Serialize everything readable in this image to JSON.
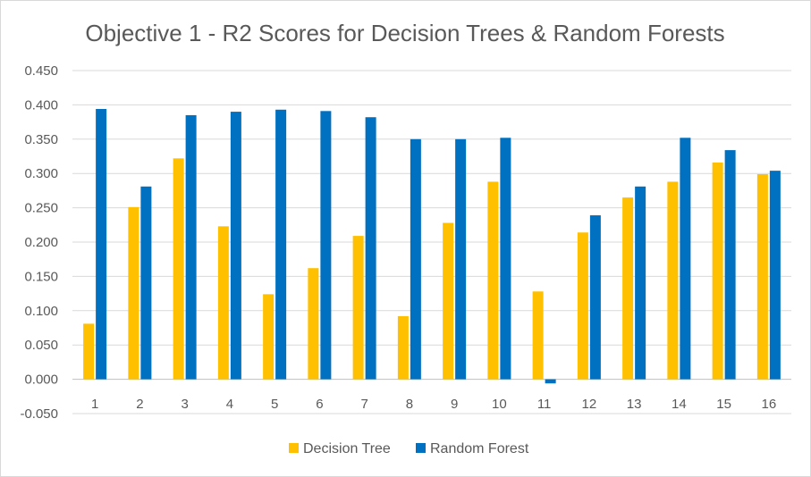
{
  "chart_data": {
    "type": "bar",
    "title": "Objective 1 - R2 Scores for Decision Trees & Random Forests",
    "xlabel": "",
    "ylabel": "",
    "categories": [
      "1",
      "2",
      "3",
      "4",
      "5",
      "6",
      "7",
      "8",
      "9",
      "10",
      "11",
      "12",
      "13",
      "14",
      "15",
      "16"
    ],
    "ylim": [
      -0.05,
      0.45
    ],
    "yticks": [
      "0.450",
      "0.400",
      "0.350",
      "0.300",
      "0.250",
      "0.200",
      "0.150",
      "0.100",
      "0.050",
      "0.000",
      "-0.050"
    ],
    "ytick_values": [
      0.45,
      0.4,
      0.35,
      0.3,
      0.25,
      0.2,
      0.15,
      0.1,
      0.05,
      0.0,
      -0.05
    ],
    "grid": "horizontal",
    "legend_position": "bottom",
    "series": [
      {
        "name": "Decision Tree",
        "color": "#FFC000",
        "values": [
          0.081,
          0.251,
          0.322,
          0.223,
          0.124,
          0.162,
          0.209,
          0.092,
          0.228,
          0.288,
          0.128,
          0.214,
          0.265,
          0.288,
          0.316,
          0.299
        ]
      },
      {
        "name": "Random Forest",
        "color": "#0070C0",
        "values": [
          0.394,
          0.281,
          0.385,
          0.39,
          0.393,
          0.391,
          0.382,
          0.35,
          0.35,
          0.352,
          -0.006,
          0.239,
          0.281,
          0.352,
          0.334,
          0.304
        ]
      }
    ]
  }
}
